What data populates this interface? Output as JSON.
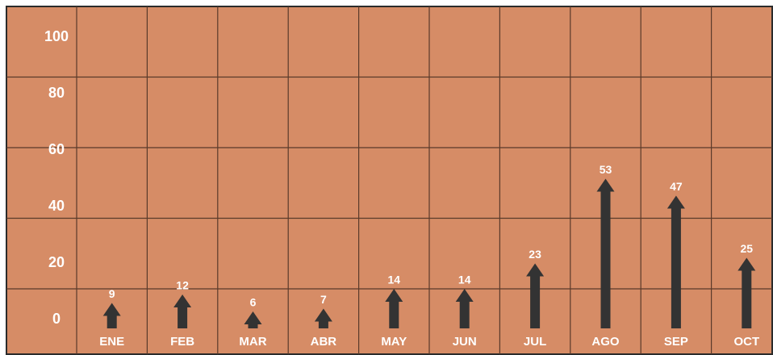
{
  "chart_data": {
    "type": "arrow-bar",
    "categories": [
      "ENE",
      "FEB",
      "MAR",
      "ABR",
      "MAY",
      "JUN",
      "JUL",
      "AGO",
      "SEP",
      "OCT"
    ],
    "values": [
      9,
      12,
      6,
      7,
      14,
      14,
      23,
      53,
      47,
      25
    ],
    "color": "#333333",
    "ylim": [
      0,
      100
    ],
    "yticks": [
      0,
      20,
      40,
      60,
      80,
      100
    ],
    "grid": true
  }
}
